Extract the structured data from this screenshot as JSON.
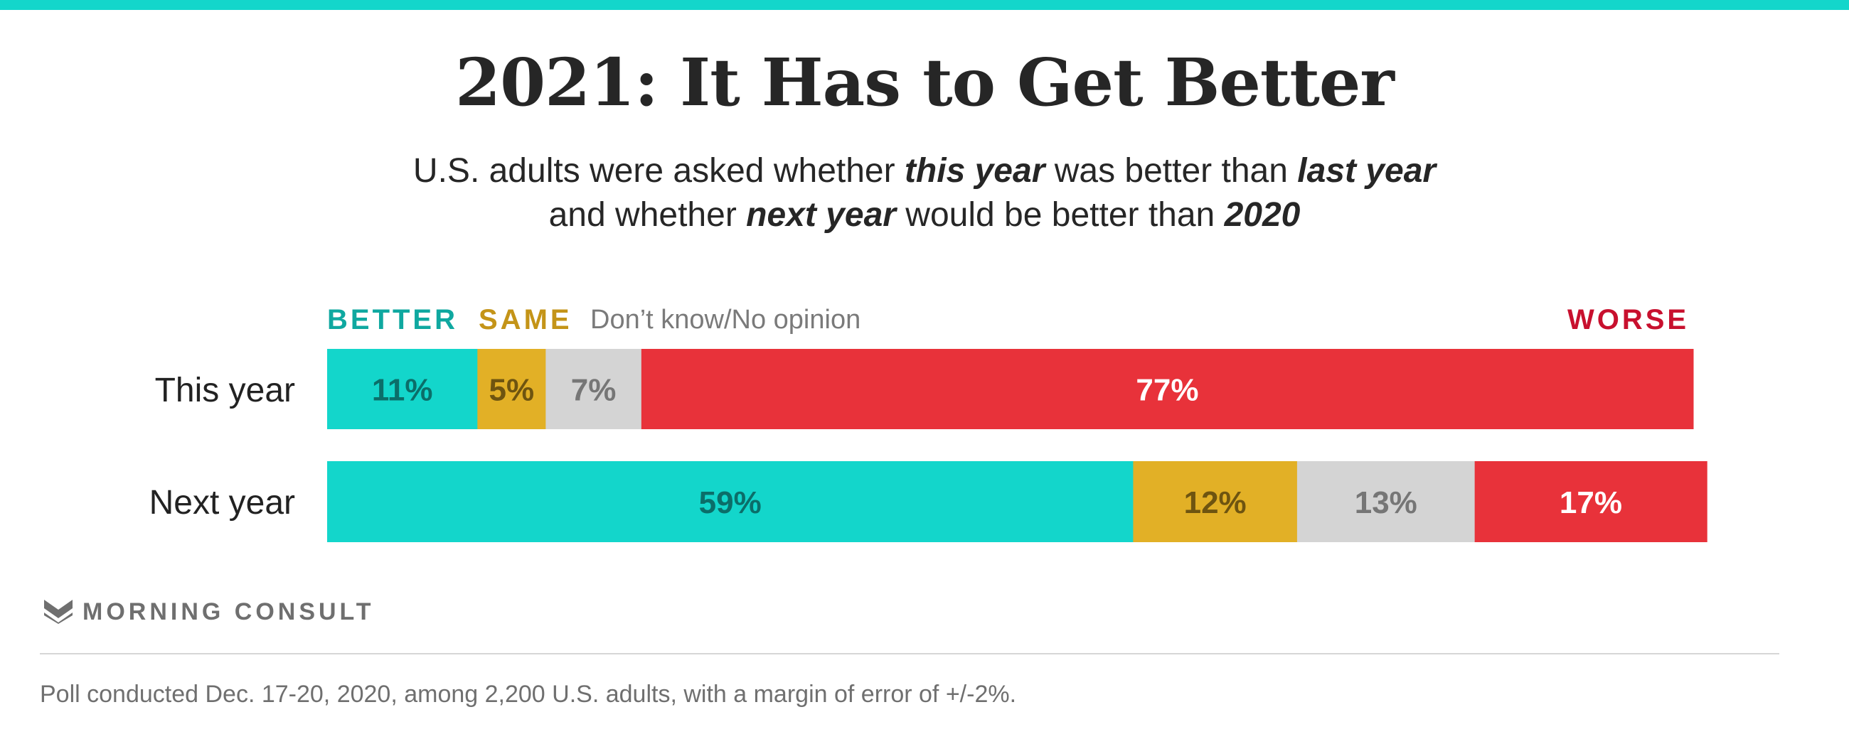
{
  "title": "2021: It Has to Get Better",
  "subtitle": {
    "line1": {
      "p1": "U.S. adults were asked whether ",
      "b1": "this year",
      "p2": " was better than ",
      "b2": "last year"
    },
    "line2": {
      "p1": "and whether ",
      "b1": "next year",
      "p2": " would be better than ",
      "b2": "2020"
    }
  },
  "legend": {
    "better": "BETTER",
    "same": "SAME",
    "dont_know": "Don’t know/No opinion",
    "worse": "WORSE"
  },
  "colors": {
    "better": "#13d6cb",
    "same": "#e2b026",
    "dont_know": "#d4d4d4",
    "worse": "#e8323a",
    "better_text": "#0fa8a0",
    "same_text": "#c49418",
    "worse_text": "#c8102e",
    "top_bar": "#13d6cb"
  },
  "chart_data": {
    "type": "bar",
    "orientation": "horizontal",
    "stacked": true,
    "categories": [
      "This year",
      "Next year"
    ],
    "series": [
      {
        "name": "BETTER",
        "values": [
          11,
          59
        ],
        "labels": [
          "11%",
          "59%"
        ],
        "color": "#13d6cb",
        "label_color": "#0b6e69"
      },
      {
        "name": "SAME",
        "values": [
          5,
          12
        ],
        "labels": [
          "5%",
          "12%"
        ],
        "color": "#e2b026",
        "label_color": "#6e5410"
      },
      {
        "name": "Don’t know/No opinion",
        "values": [
          7,
          13
        ],
        "labels": [
          "7%",
          "13%"
        ],
        "color": "#d4d4d4",
        "label_color": "#767676"
      },
      {
        "name": "WORSE",
        "values": [
          77,
          17
        ],
        "labels": [
          "77%",
          "17%"
        ],
        "color": "#e8323a",
        "label_color": "#ffffff"
      }
    ],
    "xlim": [
      0,
      100
    ],
    "legend_position": "top",
    "grid": false
  },
  "brand": {
    "name": "MORNING CONSULT",
    "icon": "morning-consult-logo-icon"
  },
  "footnote": "Poll conducted Dec. 17-20, 2020, among 2,200 U.S. adults, with a margin of error of +/-2%."
}
